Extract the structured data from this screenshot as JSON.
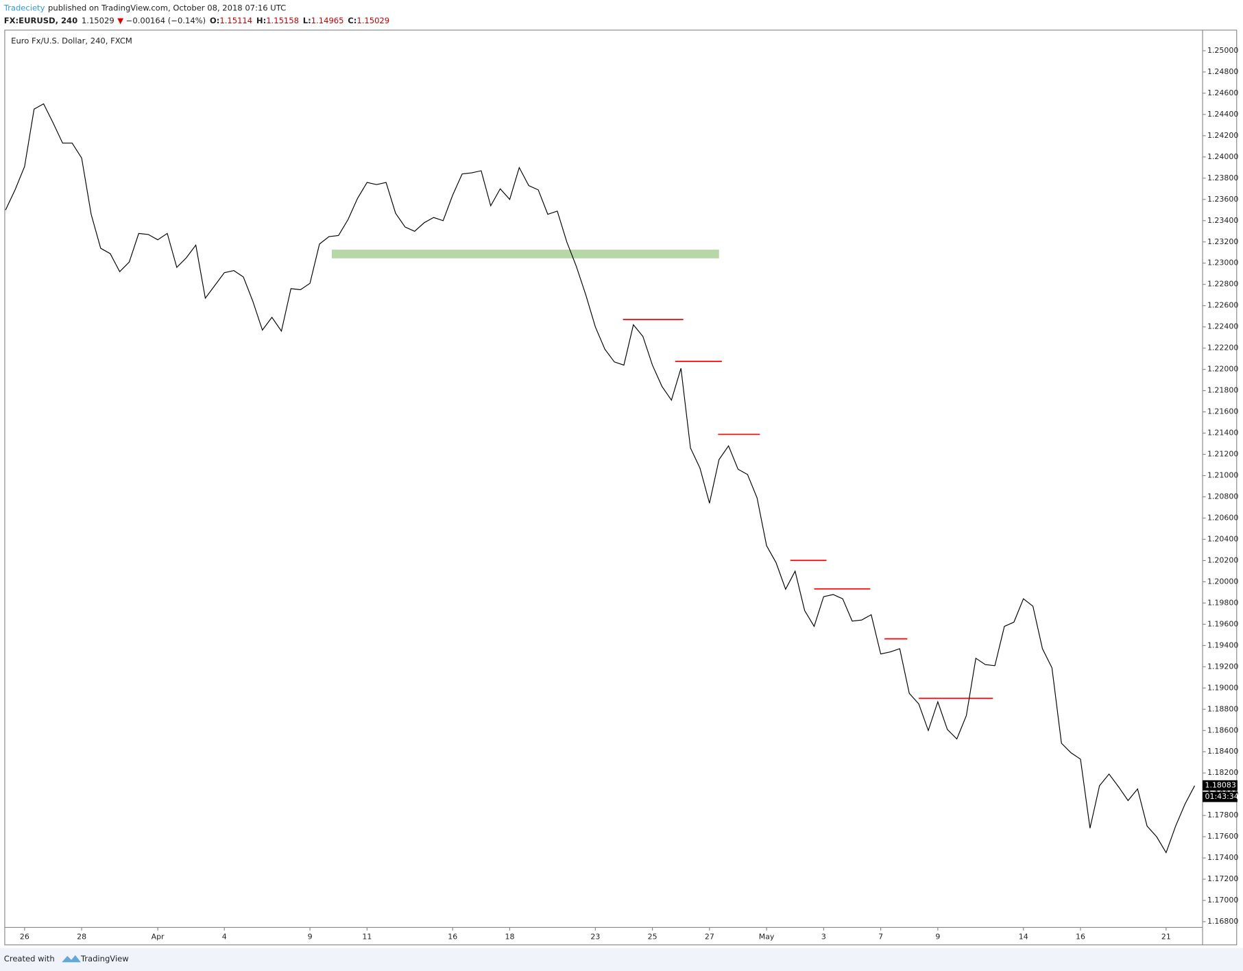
{
  "header": {
    "author": "Tradeciety",
    "published": "published on TradingView.com, October 08, 2018 07:16 UTC",
    "symbol": "FX:EURUSD, 240",
    "last": "1.15029",
    "arrow": "▼",
    "change": "−0.00164 (−0.14%)",
    "ohlc": [
      {
        "label": "O:",
        "value": "1.15114"
      },
      {
        "label": "H:",
        "value": "1.15158"
      },
      {
        "label": "L:",
        "value": "1.14965"
      },
      {
        "label": "C:",
        "value": "1.15029"
      }
    ]
  },
  "chart_data": {
    "type": "line",
    "title": "Euro Fx/U.S. Dollar, 240, FXCM",
    "categories": [
      null,
      null,
      "26",
      null,
      null,
      null,
      null,
      null,
      "28",
      null,
      null,
      null,
      null,
      null,
      null,
      null,
      "Apr",
      null,
      null,
      null,
      null,
      null,
      null,
      "4",
      null,
      null,
      null,
      null,
      null,
      null,
      null,
      null,
      "9",
      null,
      null,
      null,
      null,
      null,
      "11",
      null,
      null,
      null,
      null,
      null,
      null,
      null,
      null,
      "16",
      null,
      null,
      null,
      null,
      null,
      "18",
      null,
      null,
      null,
      null,
      null,
      null,
      null,
      null,
      "23",
      null,
      null,
      null,
      null,
      null,
      "25",
      null,
      null,
      null,
      null,
      null,
      "27",
      null,
      null,
      null,
      null,
      null,
      "May",
      null,
      null,
      null,
      null,
      null,
      "3",
      null,
      null,
      null,
      null,
      null,
      "7",
      null,
      null,
      null,
      null,
      null,
      "9",
      null,
      null,
      null,
      null,
      null,
      null,
      null,
      null,
      "14",
      null,
      null,
      null,
      null,
      null,
      "16",
      null,
      null,
      null,
      null,
      null,
      null,
      null,
      null,
      "21",
      null,
      null,
      null
    ],
    "series": [
      {
        "name": "Euro Fx/U.S. Dollar, 240, FXCM",
        "color": "#000000",
        "values": [
          1.235,
          1.2369,
          1.2391,
          1.2445,
          1.245,
          1.2432,
          1.2413,
          1.2413,
          1.2399,
          1.2346,
          1.2314,
          1.2309,
          1.2292,
          1.2301,
          1.2328,
          1.2327,
          1.2322,
          1.2328,
          1.2296,
          1.2305,
          1.2317,
          1.2267,
          1.2279,
          1.2291,
          1.2293,
          1.2287,
          1.2264,
          1.2237,
          1.2249,
          1.2236,
          1.2276,
          1.2275,
          1.2281,
          1.2318,
          1.2325,
          1.2326,
          1.2341,
          1.2361,
          1.2376,
          1.2374,
          1.2376,
          1.2347,
          1.2334,
          1.233,
          1.2338,
          1.2343,
          1.234,
          1.2364,
          1.2384,
          1.2385,
          1.2387,
          1.2354,
          1.237,
          1.236,
          1.239,
          1.2373,
          1.2369,
          1.2346,
          1.2349,
          1.232,
          1.2297,
          1.227,
          1.224,
          1.2219,
          1.2207,
          1.2204,
          1.2242,
          1.2231,
          1.2204,
          1.2184,
          1.2171,
          1.2201,
          1.2126,
          1.2107,
          1.2074,
          1.2115,
          1.2128,
          1.2106,
          1.2101,
          1.2079,
          1.2034,
          1.2018,
          1.1993,
          1.201,
          1.1973,
          1.1958,
          1.1986,
          1.1988,
          1.1984,
          1.1963,
          1.1964,
          1.1969,
          1.1932,
          1.1934,
          1.1937,
          1.1895,
          1.1885,
          1.186,
          1.1887,
          1.1861,
          1.1852,
          1.1874,
          1.1928,
          1.1922,
          1.1921,
          1.1958,
          1.1962,
          1.1984,
          1.1977,
          1.1937,
          1.1919,
          1.1848,
          1.1839,
          1.1833,
          1.1768,
          1.1808,
          1.1819,
          1.1807,
          1.1794,
          1.1805,
          1.177,
          1.176,
          1.1745,
          1.177,
          1.1791,
          1.1808
        ]
      }
    ],
    "ylim": [
      1.16746,
      1.25194
    ],
    "yticks": [
      {
        "value": 1.168,
        "label": "1.16800"
      },
      {
        "value": 1.17,
        "label": "1.17000"
      },
      {
        "value": 1.172,
        "label": "1.17200"
      },
      {
        "value": 1.174,
        "label": "1.17400"
      },
      {
        "value": 1.176,
        "label": "1.17600"
      },
      {
        "value": 1.178,
        "label": "1.17800"
      },
      {
        "value": 1.18,
        "label": "1.18000"
      },
      {
        "value": 1.182,
        "label": "1.18200"
      },
      {
        "value": 1.184,
        "label": "1.18400"
      },
      {
        "value": 1.186,
        "label": "1.18600"
      },
      {
        "value": 1.188,
        "label": "1.18800"
      },
      {
        "value": 1.19,
        "label": "1.19000"
      },
      {
        "value": 1.192,
        "label": "1.19200"
      },
      {
        "value": 1.194,
        "label": "1.19400"
      },
      {
        "value": 1.196,
        "label": "1.19600"
      },
      {
        "value": 1.198,
        "label": "1.19800"
      },
      {
        "value": 1.2,
        "label": "1.20000"
      },
      {
        "value": 1.202,
        "label": "1.20200"
      },
      {
        "value": 1.204,
        "label": "1.20400"
      },
      {
        "value": 1.206,
        "label": "1.20600"
      },
      {
        "value": 1.208,
        "label": "1.20800"
      },
      {
        "value": 1.21,
        "label": "1.21000"
      },
      {
        "value": 1.212,
        "label": "1.21200"
      },
      {
        "value": 1.214,
        "label": "1.21400"
      },
      {
        "value": 1.216,
        "label": "1.21600"
      },
      {
        "value": 1.218,
        "label": "1.21800"
      },
      {
        "value": 1.22,
        "label": "1.22000"
      },
      {
        "value": 1.222,
        "label": "1.22200"
      },
      {
        "value": 1.224,
        "label": "1.22400"
      },
      {
        "value": 1.226,
        "label": "1.22600"
      },
      {
        "value": 1.228,
        "label": "1.22800"
      },
      {
        "value": 1.23,
        "label": "1.23000"
      },
      {
        "value": 1.232,
        "label": "1.23200"
      },
      {
        "value": 1.234,
        "label": "1.23400"
      },
      {
        "value": 1.236,
        "label": "1.23600"
      },
      {
        "value": 1.238,
        "label": "1.23800"
      },
      {
        "value": 1.24,
        "label": "1.24000"
      },
      {
        "value": 1.242,
        "label": "1.24200"
      },
      {
        "value": 1.244,
        "label": "1.24400"
      },
      {
        "value": 1.246,
        "label": "1.24600"
      },
      {
        "value": 1.248,
        "label": "1.24800"
      },
      {
        "value": 1.25,
        "label": "1.25000"
      }
    ],
    "grid": false,
    "last_price": {
      "value": 1.18083,
      "label": "1.18083"
    },
    "countdown": "01:43:34",
    "zone": {
      "color": "#b7d7a8",
      "y": [
        1.23045,
        1.23127
      ],
      "x": [
        34.3,
        75
      ]
    },
    "hlines": {
      "color": "#ff0000",
      "lines": [
        {
          "y": 1.2247,
          "x": [
            64.9,
            71.25
          ]
        },
        {
          "y": 1.22075,
          "x": [
            70.4,
            75.3
          ]
        },
        {
          "y": 1.21388,
          "x": [
            74.9,
            79.3
          ]
        },
        {
          "y": 1.20201,
          "x": [
            82.5,
            86.3
          ]
        },
        {
          "y": 1.19933,
          "x": [
            85,
            90.9
          ]
        },
        {
          "y": 1.19463,
          "x": [
            92.4,
            94.8
          ]
        },
        {
          "y": 1.18903,
          "x": [
            96,
            103.8
          ]
        }
      ]
    }
  },
  "footer": {
    "created": "Created with",
    "brand": "TradingView"
  }
}
